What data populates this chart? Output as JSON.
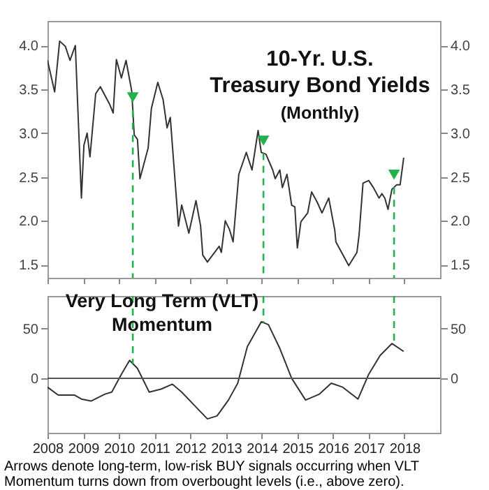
{
  "chart_data": [
    {
      "type": "line",
      "title": "10-Yr. U.S. Treasury Bond Yields",
      "subtitle": "(Monthly)",
      "color": "#333333",
      "x": [
        2008.0,
        2008.2,
        2008.34,
        2008.5,
        2008.63,
        2008.78,
        2008.95,
        2009.02,
        2009.11,
        2009.19,
        2009.35,
        2009.48,
        2009.74,
        2009.84,
        2009.93,
        2010.07,
        2010.2,
        2010.36,
        2010.43,
        2010.52,
        2010.59,
        2010.82,
        2010.91,
        2011.09,
        2011.24,
        2011.35,
        2011.44,
        2011.67,
        2011.76,
        2011.96,
        2012.16,
        2012.29,
        2012.35,
        2012.48,
        2012.81,
        2012.87,
        2012.98,
        2013.1,
        2013.2,
        2013.36,
        2013.57,
        2013.73,
        2013.9,
        2013.99,
        2014.12,
        2014.31,
        2014.38,
        2014.51,
        2014.58,
        2014.71,
        2014.84,
        2014.93,
        2015.0,
        2015.1,
        2015.29,
        2015.4,
        2015.56,
        2015.69,
        2015.88,
        2016.05,
        2016.08,
        2016.44,
        2016.67,
        2016.73,
        2016.84,
        2017.0,
        2017.13,
        2017.29,
        2017.37,
        2017.45,
        2017.54,
        2017.65,
        2017.78,
        2017.88,
        2017.98
      ],
      "values": [
        3.83,
        3.47,
        4.05,
        3.99,
        3.83,
        4.0,
        2.26,
        2.86,
        3.0,
        2.73,
        3.45,
        3.53,
        3.33,
        3.23,
        3.84,
        3.63,
        3.83,
        3.48,
        2.98,
        2.93,
        2.48,
        2.83,
        3.28,
        3.58,
        3.38,
        3.06,
        3.18,
        1.94,
        2.18,
        1.86,
        2.23,
        1.94,
        1.61,
        1.53,
        1.71,
        1.64,
        2.0,
        1.9,
        1.76,
        2.53,
        2.78,
        2.58,
        3.03,
        2.78,
        2.76,
        2.58,
        2.48,
        2.58,
        2.38,
        2.53,
        2.18,
        2.16,
        1.69,
        1.99,
        2.09,
        2.33,
        2.21,
        2.09,
        2.26,
        1.89,
        1.76,
        1.49,
        1.64,
        1.84,
        2.43,
        2.46,
        2.38,
        2.26,
        2.31,
        2.26,
        2.13,
        2.36,
        2.41,
        2.41,
        2.72
      ],
      "xlim": [
        2008,
        2019
      ],
      "xticks": [
        2008,
        2009,
        2010,
        2011,
        2012,
        2013,
        2014,
        2015,
        2016,
        2017,
        2018
      ],
      "ylim": [
        1.35,
        4.28
      ],
      "yticks": [
        1.5,
        {
          "value": 2,
          "label": "2.0"
        },
        2.5,
        {
          "value": 3,
          "label": "3.0"
        },
        3.5,
        {
          "value": 4,
          "label": "4.0"
        }
      ],
      "y2lim": [
        1.35,
        4.28
      ],
      "y2ticks": [
        1.5,
        {
          "value": 2,
          "label": "2.0"
        },
        2.5,
        {
          "value": 3,
          "label": "3.0"
        },
        3.5,
        {
          "value": 4,
          "label": "4.0"
        }
      ],
      "tick_labels": "y",
      "ref_lines": [
        {
          "axis": "x",
          "value": 2010.39,
          "color": "#22b14c",
          "line_style": "dashed"
        },
        {
          "axis": "x",
          "value": 2014.05,
          "color": "#22b14c",
          "line_style": "dashed"
        },
        {
          "axis": "x",
          "value": 2017.71,
          "color": "#22b14c",
          "line_style": "dashed"
        }
      ]
    },
    {
      "type": "line",
      "title": "Very Long Term (VLT) Momentum",
      "color": "#333333",
      "x": [
        2008.0,
        2008.3,
        2008.76,
        2008.95,
        2009.22,
        2009.61,
        2009.8,
        2010.07,
        2010.3,
        2010.52,
        2010.85,
        2011.18,
        2011.5,
        2011.76,
        2012.16,
        2012.48,
        2012.75,
        2013.07,
        2013.33,
        2013.6,
        2013.99,
        2014.19,
        2014.51,
        2014.84,
        2015.23,
        2015.62,
        2015.95,
        2016.27,
        2016.7,
        2017.0,
        2017.32,
        2017.65,
        2017.98
      ],
      "values": [
        -9,
        -17,
        -17,
        -21,
        -23,
        -16,
        -14,
        4,
        18,
        10,
        -14,
        -11,
        -6,
        -14,
        -29,
        -41,
        -38,
        -22,
        -5,
        32,
        57,
        54,
        30,
        0,
        -22,
        -16,
        -5,
        -9,
        -21,
        4,
        23,
        35,
        27
      ],
      "xlim": [
        2008,
        2019
      ],
      "xticks": [
        2008,
        2009,
        2010,
        2011,
        2012,
        2013,
        2014,
        2015,
        2016,
        2017,
        2018
      ],
      "ylim": [
        -55,
        83
      ],
      "yticks": [
        0,
        50
      ],
      "y2lim": [
        -55,
        83
      ],
      "y2ticks": [
        0,
        50
      ],
      "ref_lines": [
        {
          "axis": "y",
          "value": 0,
          "color": "#555555"
        },
        {
          "axis": "x",
          "value": 2010.39,
          "color": "#22b14c",
          "line_style": "dashed"
        },
        {
          "axis": "x",
          "value": 2014.05,
          "color": "#22b14c",
          "line_style": "dashed"
        },
        {
          "axis": "x",
          "value": 2017.71,
          "color": "#22b14c",
          "line_style": "dashed"
        }
      ],
      "annotations": [
        "Arrows denote long-term, low-risk BUY signals occurring when VLT Momentum turns down from overbought levels (i.e., above zero)."
      ]
    }
  ]
}
